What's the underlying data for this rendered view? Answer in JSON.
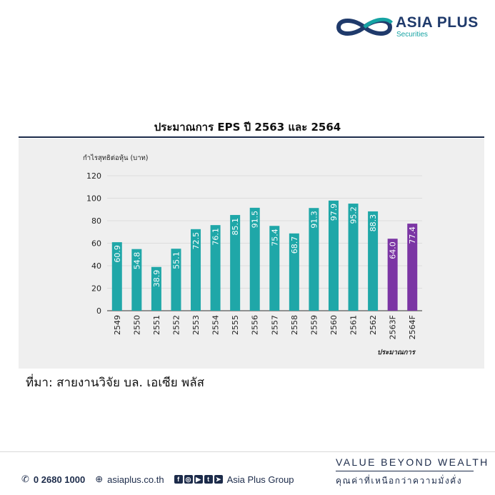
{
  "brand": {
    "name": "ASIA PLUS",
    "sub": "Securities"
  },
  "title": "ประมาณการ EPS ปี 2563 และ 2564",
  "source": "ที่มา: สายงานวิจัย บล. เอเซีย พลัส",
  "footer": {
    "phone": "0 2680 1000",
    "website": "asiaplus.co.th",
    "group": "Asia Plus Group",
    "tagline": "VALUE BEYOND WEALTH",
    "tagline_thai": "คุณค่าที่เหนือกว่าความมั่งคั่ง"
  },
  "colors": {
    "actual": "#1fa7a8",
    "forecast": "#7b35a4",
    "rule": "#1c2b4a"
  },
  "chart_data": {
    "type": "bar",
    "title": "ประมาณการ EPS ปี 2563 และ 2564",
    "ylabel": "กำไรสุทธิต่อหุ้น (บาท)",
    "xlabel": "ประมาณการ",
    "ylim": [
      0,
      120
    ],
    "yticks": [
      0,
      20,
      40,
      60,
      80,
      100,
      120
    ],
    "categories": [
      "2549",
      "2550",
      "2551",
      "2552",
      "2553",
      "2554",
      "2555",
      "2556",
      "2557",
      "2558",
      "2559",
      "2560",
      "2561",
      "2562",
      "2563F",
      "2564F"
    ],
    "values": [
      60.9,
      54.8,
      38.9,
      55.1,
      72.5,
      76.1,
      85.1,
      91.5,
      75.4,
      68.7,
      91.3,
      97.9,
      95.2,
      88.3,
      64.0,
      77.4
    ],
    "labels": [
      "60.9",
      "54.8",
      "38.9",
      "55.1",
      "72.5",
      "76.1",
      "85.1",
      "91.5",
      "75.4",
      "68.7",
      "91.3",
      "97.9",
      "95.2",
      "88.3",
      "64.0",
      "77.4"
    ],
    "forecast": [
      false,
      false,
      false,
      false,
      false,
      false,
      false,
      false,
      false,
      false,
      false,
      false,
      false,
      false,
      true,
      true
    ],
    "grid": true,
    "legend": "none"
  }
}
